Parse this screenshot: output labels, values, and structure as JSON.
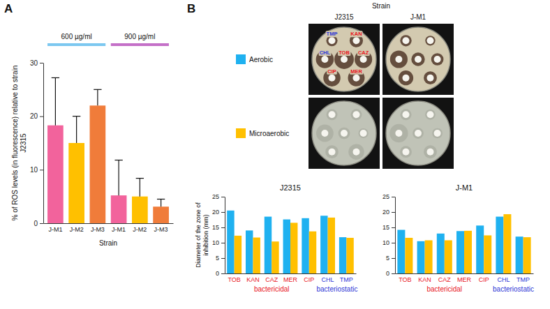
{
  "chart_data": [
    {
      "panel": "A",
      "type": "bar",
      "categories": [
        "J-M1",
        "J-M2",
        "J-M3",
        "J-M1",
        "J-M2",
        "J-M3"
      ],
      "values": [
        18.3,
        15,
        22,
        5.2,
        5,
        3.1
      ],
      "errors": [
        8.9,
        5,
        3,
        6.6,
        3.4,
        1.4
      ],
      "colors": [
        "#f2639c",
        "#ffc000",
        "#f07c3a",
        "#f2639c",
        "#ffc000",
        "#f07c3a"
      ],
      "annotations": [
        {
          "text": "600 µg/ml",
          "color": "#7cc8f0"
        },
        {
          "text": "900 µg/ml",
          "color": "#c470c8"
        }
      ],
      "xlabel": "Strain",
      "ylabel": "% of ROS levels (in fluorescence) relative to strain J2315",
      "ylim": [
        0,
        30
      ],
      "yticks": [
        0,
        10,
        20,
        30
      ]
    },
    {
      "panel": "B",
      "type": "bar",
      "title": "J2315",
      "categories": [
        "TOB",
        "KAN",
        "CAZ",
        "MER",
        "CIP",
        "CHL",
        "TMP"
      ],
      "series": [
        {
          "name": "Aerobic",
          "color": "#1fb1f0",
          "values": [
            20.5,
            14,
            18.5,
            17.6,
            18,
            18.8,
            11.8
          ]
        },
        {
          "name": "Microaerobic",
          "color": "#ffc000",
          "values": [
            12.3,
            11.7,
            10.4,
            16.5,
            13.7,
            18.2,
            11.6
          ]
        }
      ],
      "ylabel": "Diameter of the zone of inhibition (mm)",
      "ylim": [
        0,
        25
      ],
      "yticks": [
        0,
        5,
        10,
        15,
        20,
        25
      ],
      "legend": "top",
      "annotations": [
        {
          "text": "bactericidal",
          "color": "#e8141c",
          "categories": [
            "TOB",
            "KAN",
            "CAZ",
            "MER",
            "CIP"
          ]
        },
        {
          "text": "bacteriostatic",
          "color": "#2b35d6",
          "categories": [
            "CHL",
            "TMP"
          ]
        }
      ]
    },
    {
      "type": "bar",
      "title": "J-M1",
      "categories": [
        "TOB",
        "KAN",
        "CAZ",
        "MER",
        "CIP",
        "CHL",
        "TMP"
      ],
      "series": [
        {
          "color": "#1fb1f0",
          "values": [
            14.2,
            10.5,
            13,
            13.8,
            15.6,
            18.5,
            12
          ]
        },
        {
          "color": "#ffc000",
          "values": [
            11.6,
            10.8,
            10.8,
            13.9,
            12.4,
            19.3,
            11.8
          ]
        }
      ],
      "ylim": [
        0,
        25
      ],
      "yticks": [
        0,
        5,
        10,
        15,
        20,
        25
      ],
      "annotations": [
        {
          "text": "bactericidal",
          "color": "#e8141c",
          "categories": [
            "TOB",
            "KAN",
            "CAZ",
            "MER",
            "CIP"
          ]
        },
        {
          "text": "bacteriostatic",
          "color": "#2b35d6",
          "categories": [
            "CHL",
            "TMP"
          ]
        }
      ]
    }
  ],
  "plates": {
    "title": "Strain"
  }
}
